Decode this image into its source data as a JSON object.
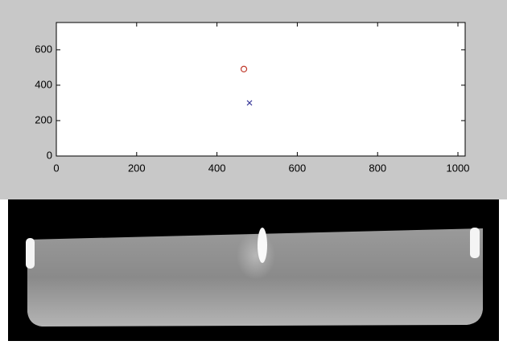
{
  "chart_data": {
    "type": "scatter",
    "series": [
      {
        "color": "#c0392b",
        "marker": "o",
        "x": [
          467
        ],
        "values": [
          491
        ]
      },
      {
        "color": "#3b3b9a",
        "marker": "x",
        "x": [
          481
        ],
        "values": [
          300
        ]
      }
    ],
    "xlim": [
      0,
      1018
    ],
    "ylim": [
      0,
      754
    ],
    "xticks": [
      0,
      200,
      400,
      600,
      800,
      1000
    ],
    "yticks": [
      0,
      200,
      400,
      600
    ]
  }
}
